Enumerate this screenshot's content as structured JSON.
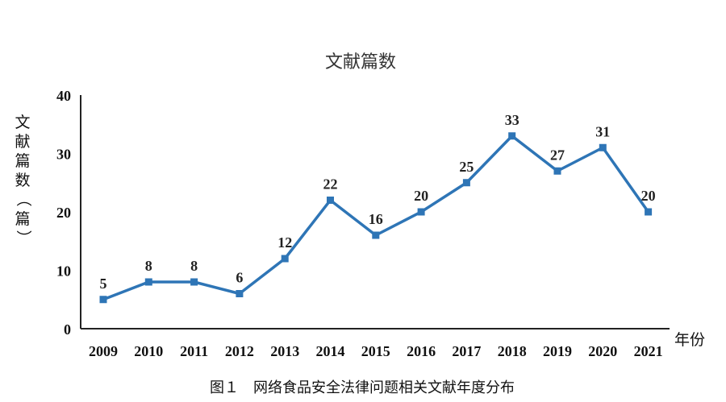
{
  "caption": "图１　网络食品安全法律问题相关文献年度分布",
  "chart_data": {
    "type": "line",
    "title": "文献篇数",
    "xlabel": "年份",
    "ylabel": "文献篇数（篇）",
    "categories": [
      "2009",
      "2010",
      "2011",
      "2012",
      "2013",
      "2014",
      "2015",
      "2016",
      "2017",
      "2018",
      "2019",
      "2020",
      "2021"
    ],
    "series": [
      {
        "values": [
          5,
          8,
          8,
          6,
          12,
          22,
          16,
          20,
          25,
          33,
          27,
          31,
          20
        ]
      }
    ],
    "ylim": [
      0,
      40
    ],
    "yticks": [
      "0",
      "10",
      "20",
      "30",
      "40"
    ],
    "grid": false,
    "legend": "none",
    "line_color": "#2e75b6"
  }
}
